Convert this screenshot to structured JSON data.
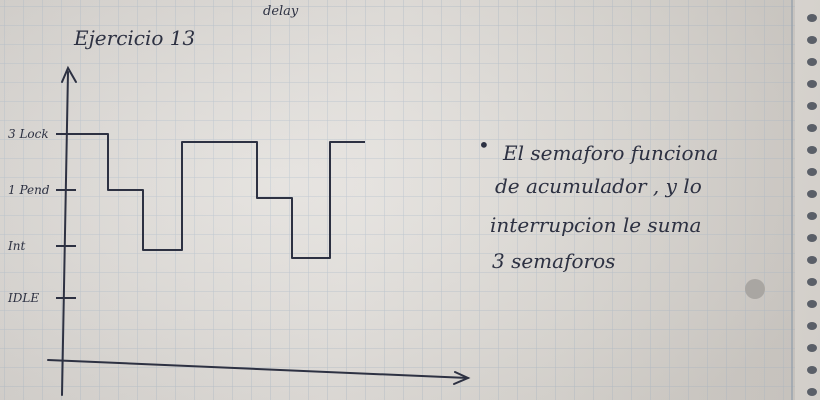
{
  "page": {
    "top_word": "delay",
    "title": "Ejercicio 13"
  },
  "diagram": {
    "y_levels": [
      "3 Lock",
      "1 Pend",
      "Int",
      "IDLE"
    ],
    "signal_levels": [
      "3 Lock",
      "1 Pend",
      "Int",
      "3 Lock",
      "1 Pend",
      "Int",
      "3 Lock"
    ]
  },
  "note": {
    "bullet": "•",
    "lines": [
      "El semaforo funciona",
      "de acumulador , y lo",
      "interrupcion le suma",
      "3 semaforos"
    ]
  },
  "colors": {
    "paper": "#e4e1dd",
    "grid": "#b9c3cd",
    "ink": "#2d3142",
    "binding": "#5a5f68"
  }
}
